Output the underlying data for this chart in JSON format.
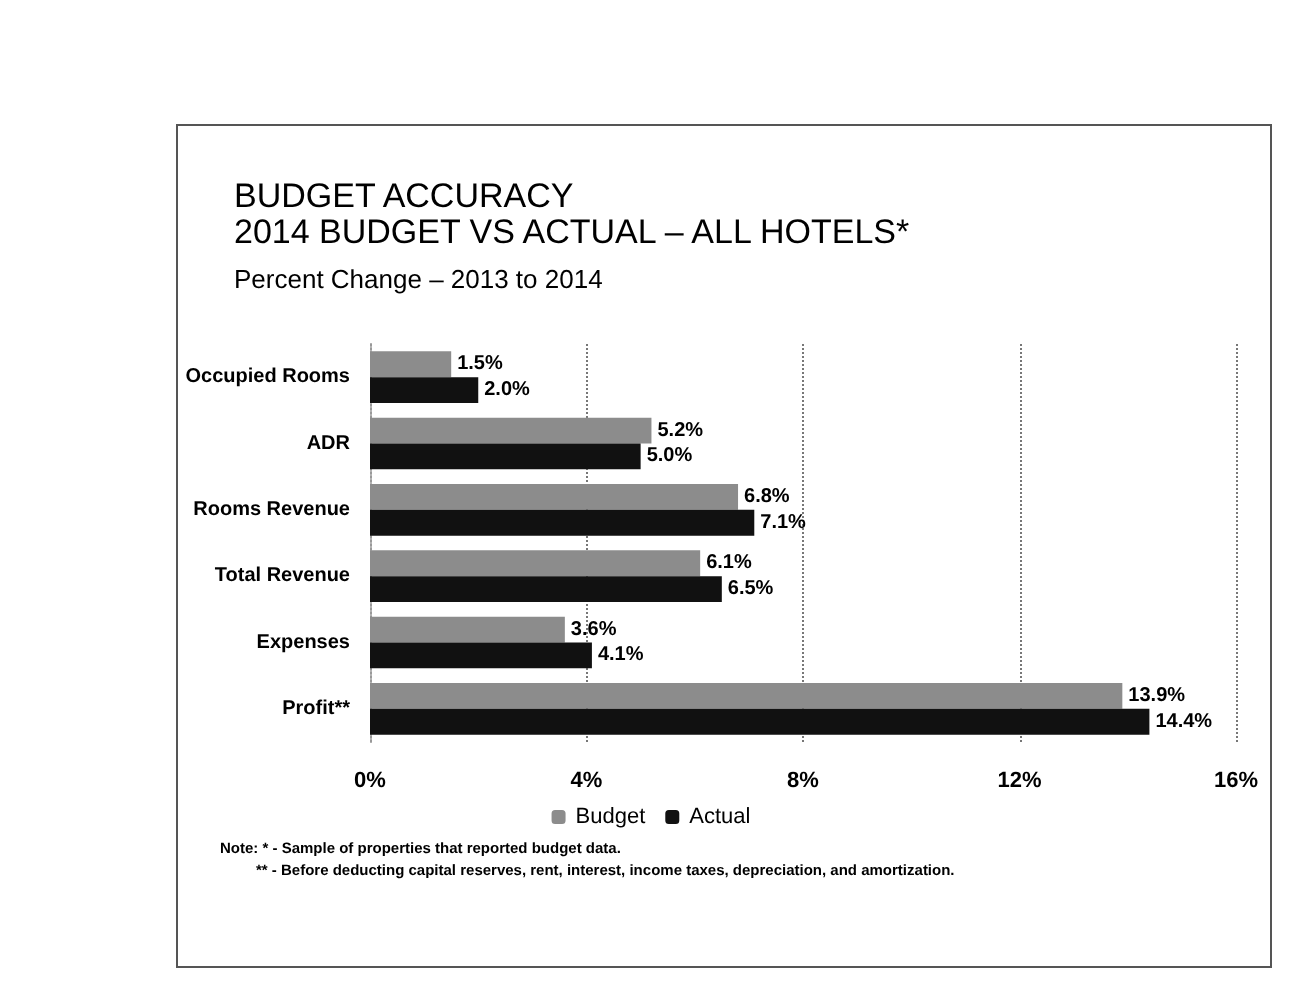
{
  "chart_data": {
    "type": "bar",
    "orientation": "horizontal",
    "title": "BUDGET ACCURACY\n2014 BUDGET VS ACTUAL – ALL HOTELS*",
    "subtitle": "Percent Change – 2013 to 2014",
    "categories": [
      "Occupied Rooms",
      "ADR",
      "Rooms Revenue",
      "Total Revenue",
      "Expenses",
      "Profit**"
    ],
    "series": [
      {
        "name": "Budget",
        "color": "#8c8c8c",
        "values": [
          1.5,
          5.2,
          6.8,
          6.1,
          3.6,
          13.9
        ],
        "value_labels": [
          "1.5%",
          "5.2%",
          "6.8%",
          "6.1%",
          "3.6%",
          "13.9%"
        ]
      },
      {
        "name": "Actual",
        "color": "#111111",
        "values": [
          2.0,
          5.0,
          7.1,
          6.5,
          4.1,
          14.4
        ],
        "value_labels": [
          "2.0%",
          "5.0%",
          "7.1%",
          "6.5%",
          "4.1%",
          "14.4%"
        ]
      }
    ],
    "xlim": [
      0,
      16
    ],
    "xticks": [
      {
        "value": 0,
        "label": "0%"
      },
      {
        "value": 4,
        "label": "4%"
      },
      {
        "value": 8,
        "label": "8%"
      },
      {
        "value": 12,
        "label": "12%"
      },
      {
        "value": 16,
        "label": "16%"
      }
    ],
    "grid": "x",
    "legend": "bottom",
    "annotations": [
      "Note: * - Sample of properties that reported budget data.",
      "** - Before deducting capital reserves, rent, interest, income taxes, depreciation, and amortization."
    ]
  }
}
